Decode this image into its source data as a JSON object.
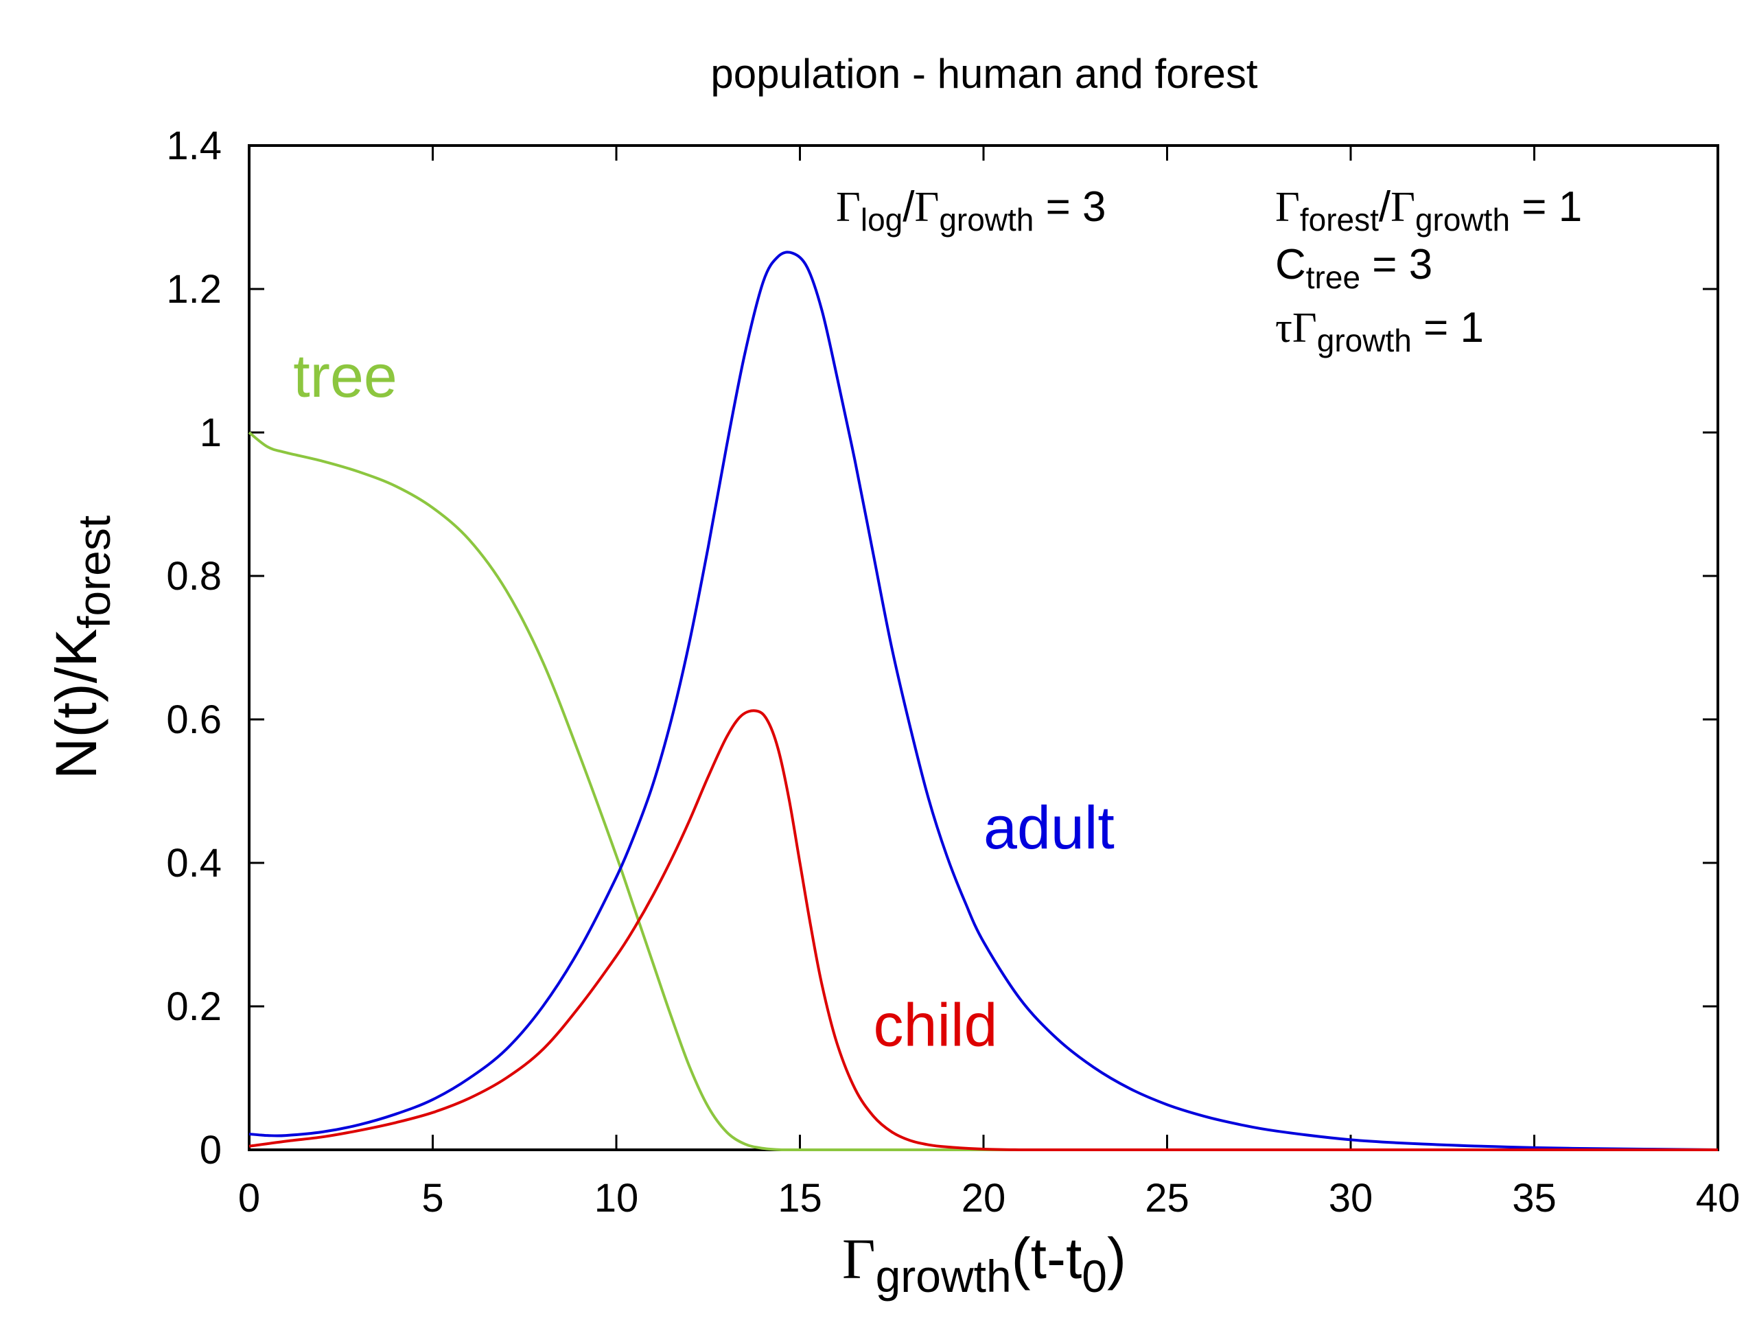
{
  "chart_data": {
    "type": "line",
    "title": "population - human and forest",
    "xlabel": {
      "greek": "Γ",
      "sub": "growth",
      "rest_a": "(t-t",
      "sub0": "0",
      "rest_b": ")"
    },
    "ylabel": {
      "main": "N(t)/K",
      "sub": "forest"
    },
    "xlim": [
      0,
      40
    ],
    "ylim": [
      0,
      1.4
    ],
    "xticks": [
      0,
      5,
      10,
      15,
      20,
      25,
      30,
      35,
      40
    ],
    "xtick_labels": [
      "0",
      "5",
      "10",
      "15",
      "20",
      "25",
      "30",
      "35",
      "40"
    ],
    "yticks": [
      0,
      0.2,
      0.4,
      0.6,
      0.8,
      1.0,
      1.2,
      1.4
    ],
    "ytick_labels": [
      "0",
      "0.2",
      "0.4",
      "0.6",
      "0.8",
      "1",
      "1.2",
      "1.4"
    ],
    "grid": false,
    "series": [
      {
        "name": "tree",
        "color": "#8cc63f",
        "x": [
          0,
          0.5,
          1,
          2,
          3,
          4,
          5,
          6,
          7,
          8,
          9,
          10,
          10.5,
          11,
          11.5,
          12,
          12.5,
          13,
          13.5,
          14,
          14.5,
          15,
          16,
          18,
          20,
          25,
          30,
          35,
          40
        ],
        "y": [
          1.0,
          0.98,
          0.972,
          0.96,
          0.945,
          0.925,
          0.895,
          0.85,
          0.78,
          0.68,
          0.55,
          0.41,
          0.335,
          0.26,
          0.185,
          0.115,
          0.06,
          0.025,
          0.008,
          0.002,
          0.0,
          0.0,
          0.0,
          0.0,
          0.0,
          0.0,
          0.0,
          0.0,
          0.0
        ]
      },
      {
        "name": "adult",
        "color": "#0000dd",
        "x": [
          0,
          0.5,
          1,
          2,
          3,
          4,
          5,
          6,
          7,
          8,
          9,
          10,
          10.5,
          11,
          11.5,
          12,
          12.5,
          13,
          13.5,
          14,
          14.4,
          14.8,
          15.2,
          15.6,
          16,
          16.5,
          17,
          17.5,
          18,
          18.5,
          19,
          19.5,
          20,
          21,
          22,
          23,
          24,
          25,
          26,
          27,
          28,
          30,
          32,
          35,
          38,
          40
        ],
        "y": [
          0.022,
          0.02,
          0.02,
          0.025,
          0.035,
          0.05,
          0.07,
          0.1,
          0.14,
          0.2,
          0.28,
          0.38,
          0.44,
          0.51,
          0.6,
          0.71,
          0.84,
          0.98,
          1.11,
          1.21,
          1.245,
          1.25,
          1.23,
          1.17,
          1.08,
          0.96,
          0.83,
          0.7,
          0.59,
          0.49,
          0.41,
          0.345,
          0.29,
          0.21,
          0.155,
          0.115,
          0.085,
          0.063,
          0.047,
          0.035,
          0.026,
          0.014,
          0.008,
          0.003,
          0.001,
          0.0
        ]
      },
      {
        "name": "child",
        "color": "#dd0000",
        "x": [
          0,
          1,
          2,
          3,
          4,
          5,
          6,
          7,
          8,
          9,
          10,
          10.5,
          11,
          11.5,
          12,
          12.5,
          13,
          13.4,
          13.8,
          14.1,
          14.4,
          14.7,
          15,
          15.3,
          15.6,
          16,
          16.5,
          17,
          17.5,
          18,
          18.5,
          19,
          20,
          21,
          22,
          25,
          30,
          40
        ],
        "y": [
          0.005,
          0.012,
          0.018,
          0.027,
          0.038,
          0.052,
          0.072,
          0.1,
          0.14,
          0.2,
          0.27,
          0.31,
          0.355,
          0.405,
          0.46,
          0.52,
          0.575,
          0.605,
          0.612,
          0.6,
          0.56,
          0.49,
          0.4,
          0.31,
          0.23,
          0.15,
          0.085,
          0.047,
          0.025,
          0.013,
          0.007,
          0.004,
          0.001,
          0.0,
          0.0,
          0.0,
          0.0,
          0.0
        ]
      }
    ],
    "curve_labels": [
      {
        "text": "tree",
        "color": "#8cc63f",
        "x": 1.2,
        "y": 1.05
      },
      {
        "text": "adult",
        "color": "#0000dd",
        "x": 20.0,
        "y": 0.42
      },
      {
        "text": "child",
        "color": "#dd0000",
        "x": 17.0,
        "y": 0.145
      }
    ],
    "annotations": {
      "log_ratio": {
        "g1": "Γ",
        "s1": "log",
        "slash": "/",
        "g2": "Γ",
        "s2": "growth",
        "rest": " = 3"
      },
      "forest_ratio": {
        "g1": "Γ",
        "s1": "forest",
        "slash": "/",
        "g2": "Γ",
        "s2": "growth",
        "rest": " = 1"
      },
      "c_tree": {
        "main": "C",
        "sub": "tree",
        "rest": " = 3"
      },
      "tau": {
        "g1": "τ",
        "g2": "Γ",
        "sub": "growth",
        "rest": " = 1"
      }
    }
  }
}
